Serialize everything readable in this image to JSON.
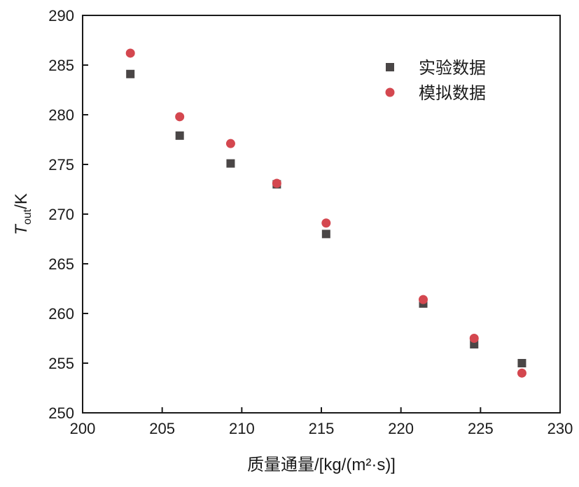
{
  "chart_data": {
    "type": "scatter",
    "title": "",
    "xlabel": "质量通量/[kg/(m²·s)]",
    "ylabel": {
      "symbol": "T",
      "subscript": "out",
      "unit": "/K"
    },
    "xlim": [
      200,
      230
    ],
    "ylim": [
      250,
      290
    ],
    "xticks": [
      200,
      205,
      210,
      215,
      220,
      225,
      230
    ],
    "yticks": [
      250,
      255,
      260,
      265,
      270,
      275,
      280,
      285,
      290
    ],
    "grid": false,
    "legend_position": "top-right",
    "series": [
      {
        "name": "实验数据",
        "marker": "square",
        "color": "#4a4646",
        "points": [
          {
            "x": 203.0,
            "y": 284.1
          },
          {
            "x": 206.1,
            "y": 277.9
          },
          {
            "x": 209.3,
            "y": 275.1
          },
          {
            "x": 212.2,
            "y": 273.0
          },
          {
            "x": 215.3,
            "y": 268.0
          },
          {
            "x": 221.4,
            "y": 261.0
          },
          {
            "x": 224.6,
            "y": 256.9
          },
          {
            "x": 227.6,
            "y": 255.0
          }
        ]
      },
      {
        "name": "模拟数据",
        "marker": "circle",
        "color": "#d4474f",
        "points": [
          {
            "x": 203.0,
            "y": 286.2
          },
          {
            "x": 206.1,
            "y": 279.8
          },
          {
            "x": 209.3,
            "y": 277.1
          },
          {
            "x": 212.2,
            "y": 273.1
          },
          {
            "x": 215.3,
            "y": 269.1
          },
          {
            "x": 221.4,
            "y": 261.4
          },
          {
            "x": 224.6,
            "y": 257.5
          },
          {
            "x": 227.6,
            "y": 254.0
          }
        ]
      }
    ]
  }
}
